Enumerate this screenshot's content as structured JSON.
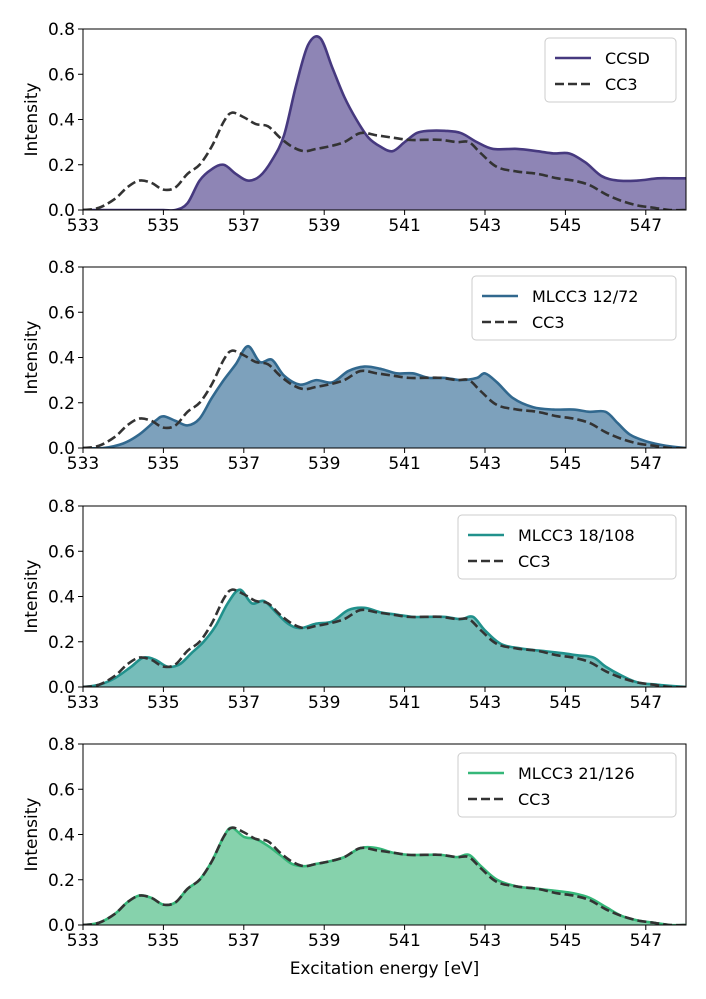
{
  "chart_data": [
    {
      "type": "area",
      "xlabel": "",
      "ylabel": "Intensity",
      "xlim": [
        533,
        548
      ],
      "ylim": [
        0,
        0.8
      ],
      "xticks": [
        "533",
        "535",
        "537",
        "539",
        "541",
        "543",
        "545",
        "547"
      ],
      "yticks": [
        "0.0",
        "0.2",
        "0.4",
        "0.6",
        "0.8"
      ],
      "legend_position": "top-right",
      "series": [
        {
          "name": "CCSD",
          "style": "solid-filled",
          "color": "#46397f",
          "fill": "#8e85b5",
          "x": [
            533.0,
            533.5,
            534.0,
            534.5,
            535.0,
            535.3,
            535.6,
            535.9,
            536.2,
            536.5,
            536.8,
            537.1,
            537.4,
            537.7,
            538.0,
            538.3,
            538.6,
            538.9,
            539.2,
            539.5,
            539.8,
            540.1,
            540.4,
            540.7,
            541.0,
            541.3,
            541.6,
            542.0,
            542.4,
            542.8,
            543.2,
            543.8,
            544.3,
            544.7,
            545.1,
            545.5,
            545.9,
            546.3,
            546.8,
            547.3,
            547.7,
            548.0
          ],
          "y": [
            0.0,
            0.0,
            0.0,
            0.0,
            0.0,
            0.0,
            0.03,
            0.13,
            0.18,
            0.2,
            0.16,
            0.13,
            0.15,
            0.22,
            0.33,
            0.55,
            0.73,
            0.76,
            0.63,
            0.5,
            0.4,
            0.32,
            0.28,
            0.26,
            0.3,
            0.34,
            0.35,
            0.35,
            0.34,
            0.3,
            0.27,
            0.27,
            0.26,
            0.25,
            0.25,
            0.21,
            0.15,
            0.13,
            0.13,
            0.14,
            0.14,
            0.14
          ]
        },
        {
          "name": "CC3",
          "style": "dashed",
          "color": "#333333",
          "x": [
            533.0,
            533.4,
            533.8,
            534.1,
            534.4,
            534.7,
            535.0,
            535.3,
            535.6,
            535.9,
            536.2,
            536.5,
            536.7,
            537.0,
            537.3,
            537.6,
            537.9,
            538.2,
            538.5,
            538.8,
            539.1,
            539.5,
            539.9,
            540.3,
            540.7,
            541.1,
            541.5,
            541.9,
            542.3,
            542.6,
            542.9,
            543.3,
            543.8,
            544.3,
            544.8,
            545.2,
            545.6,
            546.0,
            546.4,
            546.8,
            547.2,
            547.6,
            548.0
          ],
          "y": [
            0.0,
            0.01,
            0.05,
            0.1,
            0.13,
            0.12,
            0.09,
            0.1,
            0.16,
            0.2,
            0.28,
            0.39,
            0.43,
            0.41,
            0.38,
            0.37,
            0.32,
            0.28,
            0.26,
            0.27,
            0.28,
            0.3,
            0.34,
            0.33,
            0.32,
            0.31,
            0.31,
            0.31,
            0.3,
            0.3,
            0.25,
            0.19,
            0.17,
            0.16,
            0.14,
            0.13,
            0.11,
            0.07,
            0.04,
            0.02,
            0.01,
            0.0,
            0.0
          ]
        }
      ]
    },
    {
      "type": "area",
      "xlabel": "",
      "ylabel": "Intensity",
      "xlim": [
        533,
        548
      ],
      "ylim": [
        0,
        0.8
      ],
      "xticks": [
        "533",
        "535",
        "537",
        "539",
        "541",
        "543",
        "545",
        "547"
      ],
      "yticks": [
        "0.0",
        "0.2",
        "0.4",
        "0.6",
        "0.8"
      ],
      "legend_position": "top-right",
      "series": [
        {
          "name": "MLCC3 12/72",
          "style": "solid-filled",
          "color": "#31688e",
          "fill": "#7da1bc",
          "x": [
            533.0,
            533.5,
            534.0,
            534.4,
            534.8,
            535.0,
            535.3,
            535.6,
            535.9,
            536.2,
            536.5,
            536.8,
            537.1,
            537.4,
            537.7,
            538.0,
            538.4,
            538.8,
            539.2,
            539.6,
            540.0,
            540.4,
            540.8,
            541.2,
            541.6,
            542.0,
            542.4,
            542.8,
            543.0,
            543.3,
            543.7,
            544.2,
            544.7,
            545.2,
            545.6,
            546.0,
            546.3,
            546.6,
            547.0,
            547.5,
            548.0
          ],
          "y": [
            0.0,
            0.0,
            0.02,
            0.06,
            0.12,
            0.14,
            0.12,
            0.1,
            0.13,
            0.22,
            0.3,
            0.37,
            0.45,
            0.38,
            0.39,
            0.32,
            0.28,
            0.3,
            0.29,
            0.34,
            0.36,
            0.35,
            0.33,
            0.33,
            0.31,
            0.31,
            0.3,
            0.31,
            0.33,
            0.29,
            0.22,
            0.18,
            0.17,
            0.17,
            0.16,
            0.16,
            0.11,
            0.06,
            0.03,
            0.01,
            0.0
          ]
        },
        {
          "name": "CC3",
          "style": "dashed",
          "color": "#333333",
          "x": [
            533.0,
            533.4,
            533.8,
            534.1,
            534.4,
            534.7,
            535.0,
            535.3,
            535.6,
            535.9,
            536.2,
            536.5,
            536.7,
            537.0,
            537.3,
            537.6,
            537.9,
            538.2,
            538.5,
            538.8,
            539.1,
            539.5,
            539.9,
            540.3,
            540.7,
            541.1,
            541.5,
            541.9,
            542.3,
            542.6,
            542.9,
            543.3,
            543.8,
            544.3,
            544.8,
            545.2,
            545.6,
            546.0,
            546.4,
            546.8,
            547.2,
            547.6,
            548.0
          ],
          "y": [
            0.0,
            0.01,
            0.05,
            0.1,
            0.13,
            0.12,
            0.09,
            0.1,
            0.16,
            0.2,
            0.28,
            0.39,
            0.43,
            0.41,
            0.38,
            0.37,
            0.32,
            0.28,
            0.26,
            0.27,
            0.28,
            0.3,
            0.34,
            0.33,
            0.32,
            0.31,
            0.31,
            0.31,
            0.3,
            0.3,
            0.25,
            0.19,
            0.17,
            0.16,
            0.14,
            0.13,
            0.11,
            0.07,
            0.04,
            0.02,
            0.01,
            0.0,
            0.0
          ]
        }
      ]
    },
    {
      "type": "area",
      "xlabel": "",
      "ylabel": "Intensity",
      "xlim": [
        533,
        548
      ],
      "ylim": [
        0,
        0.8
      ],
      "xticks": [
        "533",
        "535",
        "537",
        "539",
        "541",
        "543",
        "545",
        "547"
      ],
      "yticks": [
        "0.0",
        "0.2",
        "0.4",
        "0.6",
        "0.8"
      ],
      "legend_position": "top-right",
      "series": [
        {
          "name": "MLCC3 18/108",
          "style": "solid-filled",
          "color": "#21918c",
          "fill": "#76bdba",
          "x": [
            533.0,
            533.4,
            533.8,
            534.2,
            534.5,
            534.8,
            535.1,
            535.4,
            535.7,
            536.0,
            536.3,
            536.6,
            536.9,
            537.2,
            537.5,
            537.8,
            538.1,
            538.4,
            538.8,
            539.2,
            539.6,
            540.0,
            540.4,
            540.8,
            541.2,
            541.6,
            542.0,
            542.4,
            542.7,
            543.0,
            543.4,
            543.9,
            544.4,
            544.9,
            545.3,
            545.7,
            546.0,
            546.4,
            546.8,
            547.3,
            548.0
          ],
          "y": [
            0.0,
            0.01,
            0.04,
            0.09,
            0.13,
            0.12,
            0.09,
            0.1,
            0.15,
            0.2,
            0.27,
            0.37,
            0.43,
            0.37,
            0.38,
            0.33,
            0.28,
            0.26,
            0.28,
            0.29,
            0.34,
            0.35,
            0.33,
            0.32,
            0.31,
            0.31,
            0.31,
            0.3,
            0.31,
            0.25,
            0.19,
            0.17,
            0.16,
            0.15,
            0.14,
            0.13,
            0.09,
            0.05,
            0.02,
            0.01,
            0.0
          ]
        },
        {
          "name": "CC3",
          "style": "dashed",
          "color": "#333333",
          "x": [
            533.0,
            533.4,
            533.8,
            534.1,
            534.4,
            534.7,
            535.0,
            535.3,
            535.6,
            535.9,
            536.2,
            536.5,
            536.7,
            537.0,
            537.3,
            537.6,
            537.9,
            538.2,
            538.5,
            538.8,
            539.1,
            539.5,
            539.9,
            540.3,
            540.7,
            541.1,
            541.5,
            541.9,
            542.3,
            542.6,
            542.9,
            543.3,
            543.8,
            544.3,
            544.8,
            545.2,
            545.6,
            546.0,
            546.4,
            546.8,
            547.2,
            547.6,
            548.0
          ],
          "y": [
            0.0,
            0.01,
            0.05,
            0.1,
            0.13,
            0.12,
            0.09,
            0.1,
            0.16,
            0.2,
            0.28,
            0.39,
            0.43,
            0.41,
            0.38,
            0.37,
            0.32,
            0.28,
            0.26,
            0.27,
            0.28,
            0.3,
            0.34,
            0.33,
            0.32,
            0.31,
            0.31,
            0.31,
            0.3,
            0.3,
            0.25,
            0.19,
            0.17,
            0.16,
            0.14,
            0.13,
            0.11,
            0.07,
            0.04,
            0.02,
            0.01,
            0.0,
            0.0
          ]
        }
      ]
    },
    {
      "type": "area",
      "xlabel": "Excitation energy [eV]",
      "ylabel": "Intensity",
      "xlim": [
        533,
        548
      ],
      "ylim": [
        0,
        0.8
      ],
      "xticks": [
        "533",
        "535",
        "537",
        "539",
        "541",
        "543",
        "545",
        "547"
      ],
      "yticks": [
        "0.0",
        "0.2",
        "0.4",
        "0.6",
        "0.8"
      ],
      "legend_position": "top-right",
      "series": [
        {
          "name": "MLCC3 21/126",
          "style": "solid-filled",
          "color": "#35b779",
          "fill": "#86d2ac",
          "x": [
            533.0,
            533.4,
            533.8,
            534.1,
            534.4,
            534.7,
            535.0,
            535.3,
            535.6,
            535.9,
            536.2,
            536.5,
            536.7,
            537.0,
            537.3,
            537.6,
            537.9,
            538.2,
            538.5,
            538.8,
            539.1,
            539.5,
            539.9,
            540.3,
            540.7,
            541.1,
            541.5,
            541.9,
            542.3,
            542.6,
            542.9,
            543.3,
            543.8,
            544.3,
            544.8,
            545.2,
            545.6,
            546.0,
            546.4,
            546.8,
            547.2,
            547.6,
            548.0
          ],
          "y": [
            0.0,
            0.01,
            0.05,
            0.1,
            0.13,
            0.12,
            0.09,
            0.1,
            0.16,
            0.2,
            0.28,
            0.39,
            0.43,
            0.39,
            0.38,
            0.35,
            0.31,
            0.27,
            0.26,
            0.27,
            0.28,
            0.3,
            0.34,
            0.34,
            0.32,
            0.31,
            0.31,
            0.31,
            0.3,
            0.31,
            0.26,
            0.2,
            0.17,
            0.16,
            0.15,
            0.14,
            0.12,
            0.08,
            0.04,
            0.02,
            0.01,
            0.0,
            0.0
          ]
        },
        {
          "name": "CC3",
          "style": "dashed",
          "color": "#333333",
          "x": [
            533.0,
            533.4,
            533.8,
            534.1,
            534.4,
            534.7,
            535.0,
            535.3,
            535.6,
            535.9,
            536.2,
            536.5,
            536.7,
            537.0,
            537.3,
            537.6,
            537.9,
            538.2,
            538.5,
            538.8,
            539.1,
            539.5,
            539.9,
            540.3,
            540.7,
            541.1,
            541.5,
            541.9,
            542.3,
            542.6,
            542.9,
            543.3,
            543.8,
            544.3,
            544.8,
            545.2,
            545.6,
            546.0,
            546.4,
            546.8,
            547.2,
            547.6,
            548.0
          ],
          "y": [
            0.0,
            0.01,
            0.05,
            0.1,
            0.13,
            0.12,
            0.09,
            0.1,
            0.16,
            0.2,
            0.28,
            0.39,
            0.43,
            0.41,
            0.38,
            0.37,
            0.32,
            0.28,
            0.26,
            0.27,
            0.28,
            0.3,
            0.34,
            0.33,
            0.32,
            0.31,
            0.31,
            0.31,
            0.3,
            0.3,
            0.25,
            0.19,
            0.17,
            0.16,
            0.14,
            0.13,
            0.11,
            0.07,
            0.04,
            0.02,
            0.01,
            0.0,
            0.0
          ]
        }
      ]
    }
  ]
}
